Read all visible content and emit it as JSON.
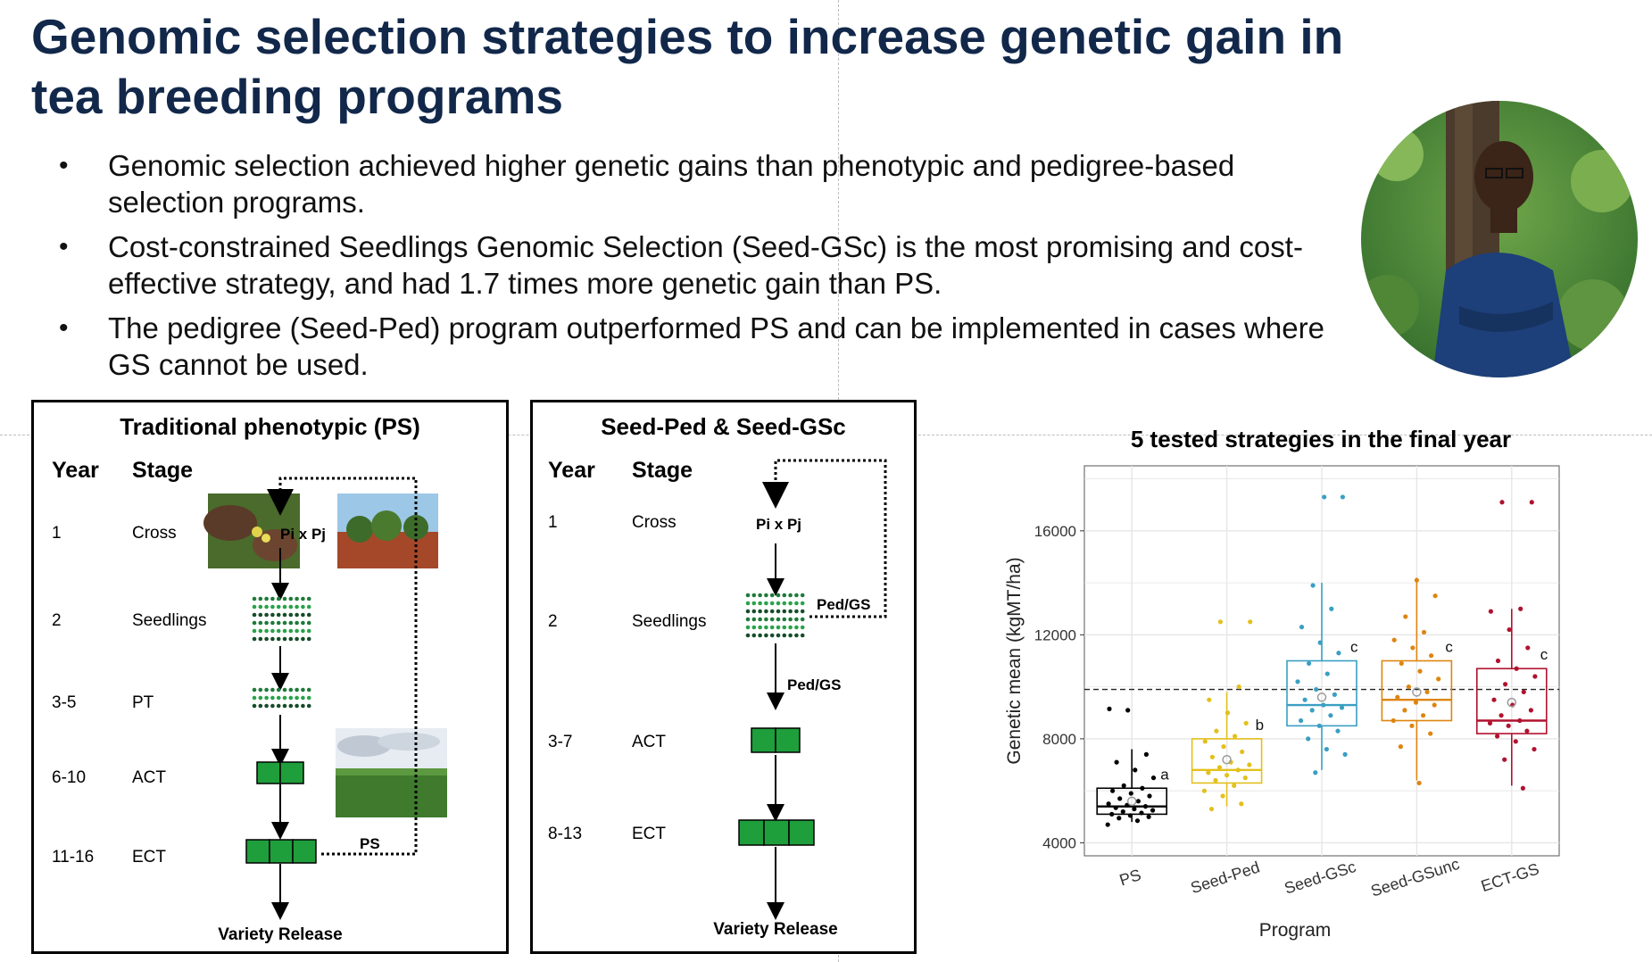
{
  "title": "Genomic selection strategies to increase genetic gain in tea breeding programs",
  "bullets": [
    "Genomic selection achieved higher genetic gains than phenotypic and pedigree-based selection programs.",
    "Cost-constrained Seedlings Genomic Selection (Seed-GSc) is the most promising and cost-effective strategy, and had 1.7 times more genetic gain than PS.",
    "The pedigree (Seed-Ped) program outperformed PS and can be implemented in cases where GS cannot be used."
  ],
  "panel_ps": {
    "title": "Traditional phenotypic (PS)",
    "year_header": "Year",
    "stage_header": "Stage",
    "rows": [
      {
        "year": "1",
        "stage": "Cross"
      },
      {
        "year": "2",
        "stage": "Seedlings"
      },
      {
        "year": "3-5",
        "stage": "PT"
      },
      {
        "year": "6-10",
        "stage": "ACT"
      },
      {
        "year": "11-16",
        "stage": "ECT"
      }
    ],
    "cross_label": "Pi x Pj",
    "loop_label": "PS",
    "release_label": "Variety Release"
  },
  "panel_seed": {
    "title": "Seed-Ped & Seed-GSc",
    "year_header": "Year",
    "stage_header": "Stage",
    "rows": [
      {
        "year": "1",
        "stage": "Cross"
      },
      {
        "year": "2",
        "stage": "Seedlings"
      },
      {
        "year": "3-7",
        "stage": "ACT"
      },
      {
        "year": "8-13",
        "stage": "ECT"
      }
    ],
    "cross_label": "Pi x Pj",
    "loop_label": "Ped/GS",
    "arrow_label": "Ped/GS",
    "release_label": "Variety Release"
  },
  "colors": {
    "title": "#12284a",
    "ps": "#000000",
    "seed_ped": "#e3c01b",
    "seed_gsc": "#3a9fc2",
    "seed_gsunc": "#de8510",
    "ect_gs": "#b0122e",
    "green_box": "#1f9e3c"
  },
  "chart_data": {
    "type": "box",
    "title": "5 tested strategies in the final year",
    "xlabel": "Program",
    "ylabel": "Genetic mean (kgMT/ha)",
    "ylim": [
      3500,
      18500
    ],
    "yticks": [
      4000,
      8000,
      12000,
      16000
    ],
    "reference_line": 9900,
    "grid": true,
    "categories": [
      "PS",
      "Seed-Ped",
      "Seed-GSc",
      "Seed-GSunc",
      "ECT-GS"
    ],
    "series": [
      {
        "name": "PS",
        "min": 4800,
        "q1": 5100,
        "median": 5400,
        "q3": 6100,
        "max": 7600,
        "mean": 5600,
        "letter": "a",
        "points": [
          4700,
          4850,
          4950,
          5000,
          5050,
          5100,
          5150,
          5200,
          5250,
          5300,
          5350,
          5400,
          5450,
          5500,
          5600,
          5700,
          5800,
          5900,
          6000,
          6100,
          6200,
          6500,
          6800,
          7100,
          7400,
          9100,
          9150
        ]
      },
      {
        "name": "Seed-Ped",
        "min": 5400,
        "q1": 6300,
        "median": 6800,
        "q3": 8000,
        "max": 9800,
        "mean": 7200,
        "letter": "b",
        "points": [
          5300,
          5500,
          5800,
          6000,
          6200,
          6400,
          6500,
          6600,
          6700,
          6800,
          6900,
          7000,
          7100,
          7300,
          7500,
          7700,
          7900,
          8100,
          8300,
          8600,
          9000,
          9500,
          10000,
          12500,
          12500
        ]
      },
      {
        "name": "Seed-GSc",
        "min": 6800,
        "q1": 8500,
        "median": 9300,
        "q3": 11000,
        "max": 14000,
        "mean": 9600,
        "letter": "c",
        "points": [
          6700,
          7400,
          7600,
          8000,
          8300,
          8500,
          8700,
          8900,
          9100,
          9200,
          9300,
          9500,
          9700,
          9900,
          10200,
          10500,
          10900,
          11300,
          11700,
          12300,
          13000,
          13900,
          17300,
          17300
        ]
      },
      {
        "name": "Seed-GSunc",
        "min": 6400,
        "q1": 8700,
        "median": 9500,
        "q3": 11000,
        "max": 14200,
        "mean": 9800,
        "letter": "c",
        "points": [
          6300,
          7700,
          8200,
          8500,
          8700,
          8900,
          9100,
          9300,
          9400,
          9600,
          9800,
          10000,
          10300,
          10600,
          10900,
          11200,
          11500,
          11800,
          12100,
          12700,
          13500,
          14100
        ]
      },
      {
        "name": "ECT-GS",
        "min": 6200,
        "q1": 8200,
        "median": 8700,
        "q3": 10700,
        "max": 13000,
        "mean": 9400,
        "letter": "c",
        "points": [
          6100,
          7200,
          7600,
          7900,
          8100,
          8300,
          8500,
          8600,
          8700,
          8900,
          9100,
          9300,
          9500,
          9800,
          10100,
          10400,
          10700,
          11000,
          11500,
          12200,
          12900,
          13000,
          17100,
          17100
        ]
      }
    ]
  }
}
